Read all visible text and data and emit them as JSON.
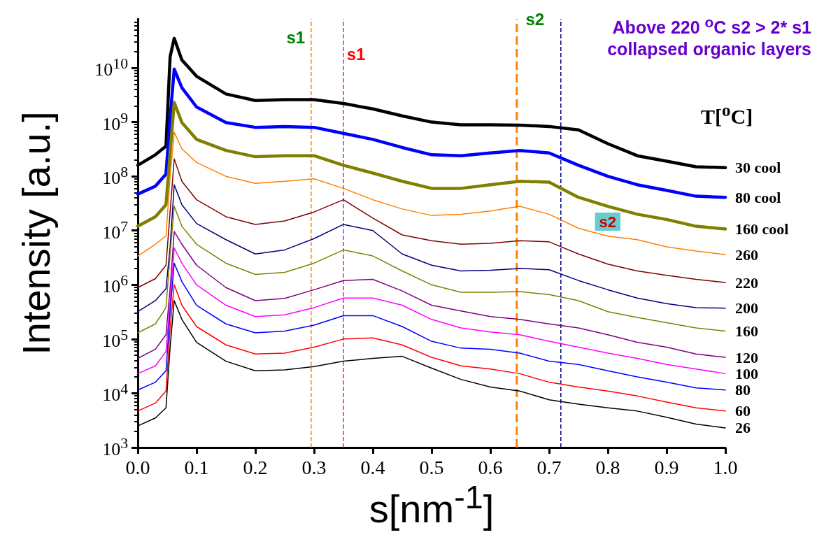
{
  "chart_data": {
    "type": "line",
    "xlabel": "s[nm$^{-1}$]",
    "ylabel": "Intensity [a.u.]",
    "legend_title": "T[$^{o}$C]",
    "annotations": [
      "Above 220 $^{o}$C s2 > 2* s1",
      "collapsed organic layers"
    ],
    "log": "y",
    "grid": false,
    "legend": false,
    "marker": "none",
    "line_style": "solid",
    "xlim": [
      0,
      1
    ],
    "xticks": [
      {
        "value": 0,
        "label": "0.0"
      },
      0.1,
      0.2,
      0.3,
      0.4,
      0.5,
      0.6,
      0.7,
      0.8,
      0.9,
      {
        "value": 1,
        "label": "1.0"
      }
    ],
    "ylim": [
      1000,
      80000000000.0
    ],
    "yticks": [
      {
        "value": 1000,
        "label": "10$^{3}$"
      },
      {
        "value": 10000,
        "label": "10$^{4}$"
      },
      {
        "value": 100000,
        "label": "10$^{5}$"
      },
      {
        "value": 1000000,
        "label": "10$^{6}$"
      },
      {
        "value": 10000000,
        "label": "10$^{7}$"
      },
      {
        "value": 100000000,
        "label": "10$^{8}$"
      },
      {
        "value": 1000000000,
        "label": "10$^{9}$"
      },
      {
        "value": 10000000000,
        "label": "10$^{10}$"
      }
    ],
    "x": [
      0,
      0.03,
      0.048,
      0.055,
      0.062,
      0.075,
      0.1,
      0.15,
      0.2,
      0.25,
      0.3,
      0.35,
      0.4,
      0.45,
      0.5,
      0.55,
      0.6,
      0.65,
      0.7,
      0.75,
      0.8,
      0.85,
      0.9,
      0.95,
      1.0
    ],
    "series": [
      {
        "name": "30 cool",
        "color": "#000000",
        "values": [
          160000000.0,
          250000000.0,
          360000000.0,
          16000000000.0,
          35000000000.0,
          14000000000.0,
          7000000000.0,
          3300000000.0,
          2500000000.0,
          2600000000.0,
          2600000000.0,
          2200000000.0,
          1750000000.0,
          1300000000.0,
          1000000000.0,
          890000000.0,
          890000000.0,
          880000000.0,
          830000000.0,
          720000000.0,
          400000000.0,
          240000000.0,
          190000000.0,
          150000000.0,
          145000000.0
        ]
      },
      {
        "name": "80 cool",
        "color": "#0000ff",
        "values": [
          47000000.0,
          66000000.0,
          110000000.0,
          1200000000.0,
          9500000000.0,
          4300000000.0,
          1900000000.0,
          980000000.0,
          800000000.0,
          830000000.0,
          800000000.0,
          620000000.0,
          480000000.0,
          340000000.0,
          250000000.0,
          240000000.0,
          270000000.0,
          300000000.0,
          270000000.0,
          160000000.0,
          100000000.0,
          70000000.0,
          55000000.0,
          43000000.0,
          41000000.0
        ]
      },
      {
        "name": "160 cool",
        "color": "#808000",
        "values": [
          12000000.0,
          18000000.0,
          30000000.0,
          270000000.0,
          2300000000.0,
          980000000.0,
          480000000.0,
          300000000.0,
          230000000.0,
          240000000.0,
          240000000.0,
          160000000.0,
          115000000.0,
          81000000.0,
          60000000.0,
          60000000.0,
          70000000.0,
          81000000.0,
          78000000.0,
          41000000.0,
          28000000.0,
          20000000.0,
          16000000.0,
          12000000.0,
          10700000.0
        ]
      },
      {
        "name": "260",
        "color": "#ff8000",
        "values": [
          3400000.0,
          5600000.0,
          8000000.0,
          100000000.0,
          650000000.0,
          320000000.0,
          180000000.0,
          100000000.0,
          74000000.0,
          81000000.0,
          90000000.0,
          60000000.0,
          37000000.0,
          25000000.0,
          19000000.0,
          20000000.0,
          23000000.0,
          28000000.0,
          20000000.0,
          11000000.0,
          7900000.0,
          6800000.0,
          5000000.0,
          4200000.0,
          3600000.0
        ]
      },
      {
        "name": "220",
        "color": "#800000",
        "values": [
          890000.0,
          1300000.0,
          2300000.0,
          22000000.0,
          210000000.0,
          81000000.0,
          37000000.0,
          18000000.0,
          13000000.0,
          15000000.0,
          22000000.0,
          37000000.0,
          17000000.0,
          8300000.0,
          6500000.0,
          5600000.0,
          5800000.0,
          6500000.0,
          6200000.0,
          3700000.0,
          2400000.0,
          1800000.0,
          1500000.0,
          1260000.0,
          1100000.0
        ]
      },
      {
        "name": "200",
        "color": "#000080",
        "values": [
          320000.0,
          510000.0,
          850000.0,
          5000000.0,
          70000000.0,
          30000000.0,
          13500000.0,
          6800000.0,
          3700000.0,
          4400000.0,
          7100000.0,
          13000000.0,
          10000000.0,
          3700000.0,
          2300000.0,
          1800000.0,
          1850000.0,
          2000000.0,
          1900000.0,
          1200000.0,
          810000.0,
          570000.0,
          450000.0,
          380000.0,
          370000.0
        ]
      },
      {
        "name": "160",
        "color": "#808000",
        "values": [
          130000.0,
          190000.0,
          380000.0,
          3700000.0,
          28000000.0,
          12000000.0,
          5600000.0,
          2500000.0,
          1550000.0,
          1700000.0,
          2500000.0,
          4400000.0,
          3400000.0,
          1800000.0,
          1000000.0,
          730000.0,
          730000.0,
          750000.0,
          660000.0,
          510000.0,
          320000.0,
          250000.0,
          200000.0,
          160000.0,
          140000.0
        ]
      },
      {
        "name": "120",
        "color": "#800080",
        "values": [
          44000.0,
          65000.0,
          120000.0,
          850000.0,
          9600000.0,
          5600000.0,
          2300000.0,
          890000.0,
          510000.0,
          560000.0,
          810000.0,
          1200000.0,
          1260000.0,
          770000.0,
          420000.0,
          330000.0,
          260000.0,
          230000.0,
          190000.0,
          160000.0,
          120000.0,
          87000.0,
          71000.0,
          53000.0,
          46000.0
        ]
      },
      {
        "name": "100",
        "color": "#ff00ff",
        "values": [
          23000.0,
          32000.0,
          59000.0,
          510000.0,
          4800000.0,
          2500000.0,
          1000000.0,
          420000.0,
          260000.0,
          280000.0,
          380000.0,
          570000.0,
          570000.0,
          420000.0,
          230000.0,
          160000.0,
          135000.0,
          120000.0,
          91000.0,
          71000.0,
          55000.0,
          44000.0,
          34000.0,
          28000.0,
          23000.0
        ]
      },
      {
        "name": "80",
        "color": "#0000ff",
        "values": [
          11500.0,
          16000.0,
          26000.0,
          320000.0,
          2500000.0,
          1150000.0,
          420000.0,
          190000.0,
          130000.0,
          140000.0,
          180000.0,
          270000.0,
          270000.0,
          170000.0,
          91000.0,
          68000.0,
          65000.0,
          55000.0,
          39000.0,
          34000.0,
          26000.0,
          20000.0,
          16000.0,
          12600.0,
          11500.0
        ]
      },
      {
        "name": "60",
        "color": "#ff0000",
        "values": [
          4700.0,
          6600.0,
          11000.0,
          160000.0,
          1000000.0,
          420000.0,
          170000.0,
          78000.0,
          53000.0,
          55000.0,
          71000.0,
          100000.0,
          105000.0,
          78000.0,
          46000.0,
          32000.0,
          28000.0,
          23000.0,
          16000.0,
          13000.0,
          11000.0,
          8900.0,
          6900.0,
          5400.0,
          4700.0
        ]
      },
      {
        "name": "26",
        "color": "#000000",
        "values": [
          2500.0,
          3500.0,
          5400.0,
          71000.0,
          510000.0,
          230000.0,
          87000.0,
          39000.0,
          26000.0,
          27000.0,
          31000.0,
          39000.0,
          44000.0,
          48000.0,
          29000.0,
          18000.0,
          13000.0,
          11000.0,
          7600.0,
          6300.0,
          5400.0,
          4700.0,
          3600.0,
          2700.0,
          2300.0
        ]
      }
    ],
    "ref_lines": [
      {
        "axis": "x",
        "value": 0.295,
        "label": "s1",
        "color": "#ff8000",
        "line_style": "dashed"
      },
      {
        "axis": "x",
        "value": 0.35,
        "label": "s1",
        "color": "#ff00ff",
        "line_style": "dashed"
      },
      {
        "axis": "x",
        "value": 0.645,
        "label": "s2",
        "color": "#ff8000",
        "line_style": "dashed"
      },
      {
        "axis": "x",
        "value": 0.72,
        "label": "s2",
        "color": "#000080",
        "line_style": "dashed"
      }
    ]
  }
}
